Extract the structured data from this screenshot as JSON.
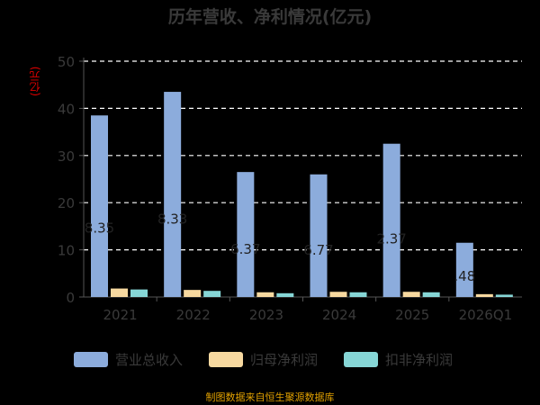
{
  "chart_data": {
    "type": "bar",
    "title": "历年营收、净利情况(亿元)",
    "ylabel": "(亿元)",
    "ylim": [
      0,
      50
    ],
    "yticks": [
      0,
      10,
      20,
      30,
      40,
      50
    ],
    "grid": true,
    "legend_position": "bottom",
    "categories": [
      "2021",
      "2022",
      "2023",
      "2024",
      "2025",
      "2026Q1"
    ],
    "series": [
      {
        "name": "营业总收入",
        "color": "#8cacdc",
        "values": [
          38.5,
          43.5,
          26.5,
          26.0,
          32.5,
          11.5
        ]
      },
      {
        "name": "归母净利润",
        "color": "#f7d9a0",
        "values": [
          1.8,
          1.5,
          1.0,
          1.1,
          1.1,
          0.6
        ]
      },
      {
        "name": "扣非净利润",
        "color": "#86d6d6",
        "values": [
          1.6,
          1.3,
          0.8,
          1.0,
          1.0,
          0.5
        ]
      }
    ],
    "data_labels": [
      "8.35",
      "8.33",
      "6.37",
      "6.77",
      "2.37",
      ".48"
    ],
    "source": "制图数据来自恒生聚源数据库"
  }
}
